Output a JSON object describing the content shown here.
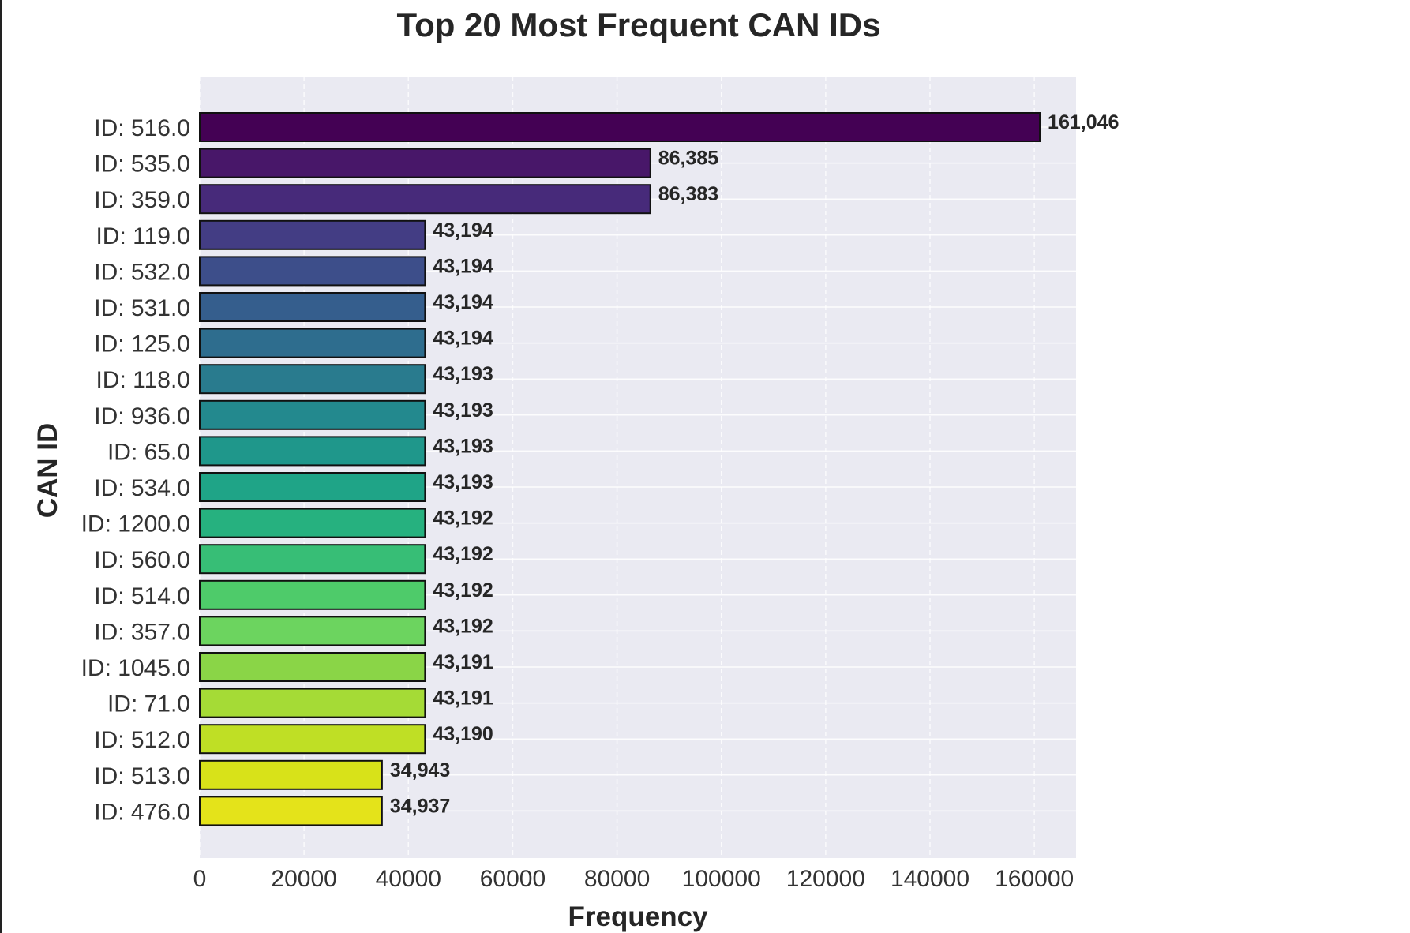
{
  "chart_data": {
    "type": "bar",
    "orientation": "horizontal",
    "title": "Top 20 Most Frequent CAN IDs",
    "xlabel": "Frequency",
    "ylabel": "CAN ID",
    "xlim": [
      0,
      168000
    ],
    "xticks": [
      0,
      20000,
      40000,
      60000,
      80000,
      100000,
      120000,
      140000,
      160000
    ],
    "xtick_labels": [
      "0",
      "20000",
      "40000",
      "60000",
      "80000",
      "100000",
      "120000",
      "140000",
      "160000"
    ],
    "grid": true,
    "colormap": "viridis",
    "categories": [
      "ID: 516.0",
      "ID: 535.0",
      "ID: 359.0",
      "ID: 119.0",
      "ID: 532.0",
      "ID: 531.0",
      "ID: 125.0",
      "ID: 118.0",
      "ID: 936.0",
      "ID: 65.0",
      "ID: 534.0",
      "ID: 1200.0",
      "ID: 560.0",
      "ID: 514.0",
      "ID: 357.0",
      "ID: 1045.0",
      "ID: 71.0",
      "ID: 512.0",
      "ID: 513.0",
      "ID: 476.0"
    ],
    "values": [
      161046,
      86385,
      86383,
      43194,
      43194,
      43194,
      43194,
      43193,
      43193,
      43193,
      43193,
      43192,
      43192,
      43192,
      43192,
      43191,
      43191,
      43190,
      34943,
      34937
    ],
    "value_labels": [
      "161,046",
      "86,385",
      "86,383",
      "43,194",
      "43,194",
      "43,194",
      "43,194",
      "43,193",
      "43,193",
      "43,193",
      "43,193",
      "43,192",
      "43,192",
      "43,192",
      "43,192",
      "43,191",
      "43,191",
      "43,190",
      "34,943",
      "34,937"
    ],
    "colors": [
      "#440154",
      "#481769",
      "#472a7a",
      "#433d84",
      "#3d4e8a",
      "#355e8d",
      "#2e6d8e",
      "#297b8e",
      "#23898e",
      "#1f978b",
      "#1fa487",
      "#26b17f",
      "#37be76",
      "#4ecb6a",
      "#6cd45f",
      "#8ad547",
      "#a5db36",
      "#bfdf25",
      "#d8e219",
      "#e4e31a"
    ]
  }
}
